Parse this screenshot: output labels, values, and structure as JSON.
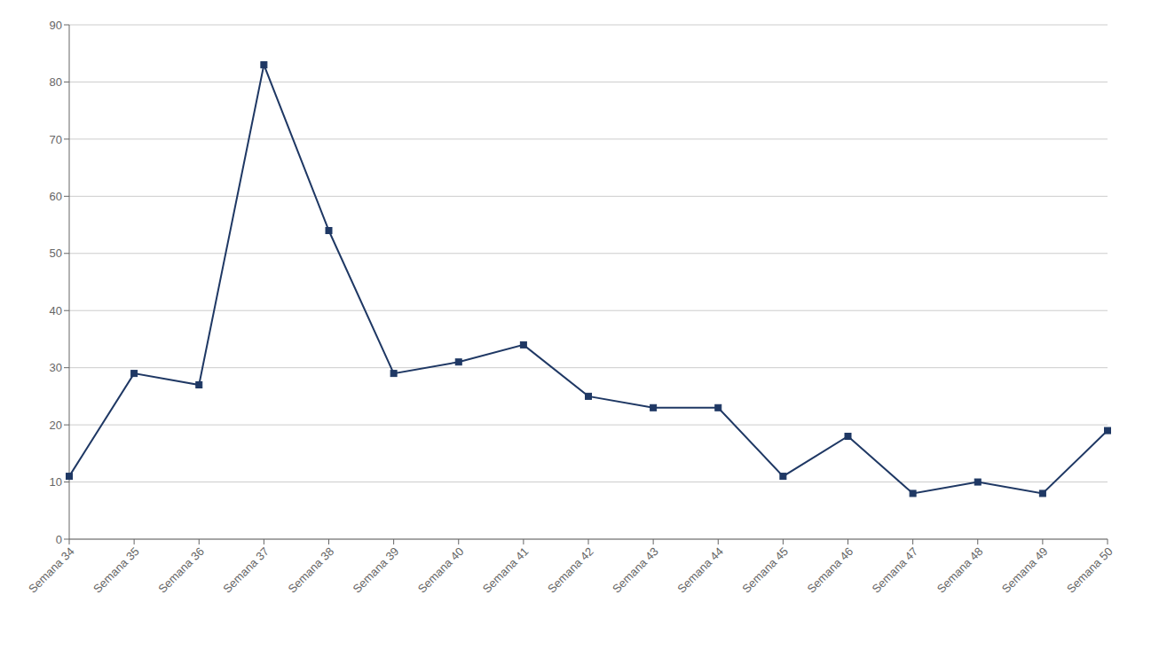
{
  "chart_data": {
    "type": "line",
    "categories": [
      "Semana 34",
      "Semana 35",
      "Semana 36",
      "Semana 37",
      "Semana 38",
      "Semana 39",
      "Semana 40",
      "Semana 41",
      "Semana 42",
      "Semana 43",
      "Semana 44",
      "Semana 45",
      "Semana 46",
      "Semana 47",
      "Semana 48",
      "Semana 49",
      "Semana 50"
    ],
    "values": [
      11,
      29,
      27,
      83,
      54,
      29,
      31,
      34,
      25,
      23,
      23,
      11,
      18,
      8,
      10,
      8,
      19
    ],
    "color": "#1F3864",
    "marker": "square",
    "ylim": [
      0,
      90
    ],
    "yticks": [
      0,
      10,
      20,
      30,
      40,
      50,
      60,
      70,
      80,
      90
    ],
    "grid": true
  }
}
